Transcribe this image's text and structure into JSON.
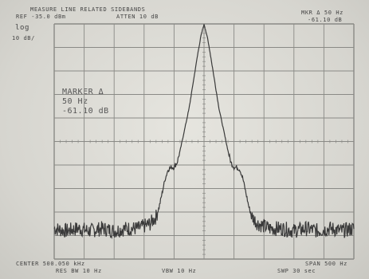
{
  "header": {
    "title": "MEASURE LINE RELATED SIDEBANDS",
    "ref_level": "REF -35.0 dBm",
    "atten": "ATTEN 10 dB",
    "marker_top_label": "MKR Δ 50 Hz",
    "marker_top_value": "-61.10 dB"
  },
  "scale": {
    "mode": "log",
    "per_div": "10 dB/"
  },
  "marker_box": {
    "line1": "MARKER Δ",
    "line2": "50 Hz",
    "line3": "-61.10 dB"
  },
  "footer": {
    "center": "CENTER 500.050 kHz",
    "res_bw": "RES BW 10 Hz",
    "vbw": "VBW 10 Hz",
    "span": "SPAN 500 Hz",
    "swp": "SWP 30 sec"
  },
  "chart_data": {
    "type": "line",
    "x_unit": "Hz offset from center",
    "xlim": [
      -250,
      250
    ],
    "ylim": [
      -100,
      0
    ],
    "y_unit": "dB relative to reference",
    "grid": true,
    "x_divisions": 10,
    "y_divisions": 10,
    "series": [
      {
        "x": [
          -250,
          -230,
          -210,
          -190,
          -170,
          -150,
          -130,
          -110,
          -100,
          -90,
          -80,
          -75,
          -70,
          -65,
          -60,
          -55,
          -50,
          -45,
          -40,
          -35,
          -30,
          -25,
          -20,
          -15,
          -10,
          -5,
          0,
          5,
          10,
          15,
          20,
          25,
          30,
          35,
          40,
          45,
          50,
          55,
          60,
          65,
          70,
          75,
          80,
          90,
          100,
          110,
          130,
          150,
          170,
          190,
          210,
          230,
          250
        ],
        "y": [
          -87,
          -88,
          -87,
          -88,
          -87,
          -88,
          -87,
          -87,
          -86,
          -85,
          -82,
          -78,
          -72,
          -66,
          -62,
          -61,
          -61,
          -59,
          -54,
          -48,
          -42,
          -36,
          -28,
          -20,
          -12,
          -5,
          0,
          -5,
          -12,
          -20,
          -28,
          -36,
          -42,
          -48,
          -54,
          -59,
          -61,
          -61,
          -62,
          -66,
          -72,
          -78,
          -82,
          -85,
          -86,
          -87,
          -87,
          -88,
          -87,
          -88,
          -87,
          -88,
          -87
        ]
      }
    ]
  },
  "colors": {
    "trace": "#3a3a3a",
    "grid": "#8a8a86",
    "background": "#dcdbd5"
  }
}
